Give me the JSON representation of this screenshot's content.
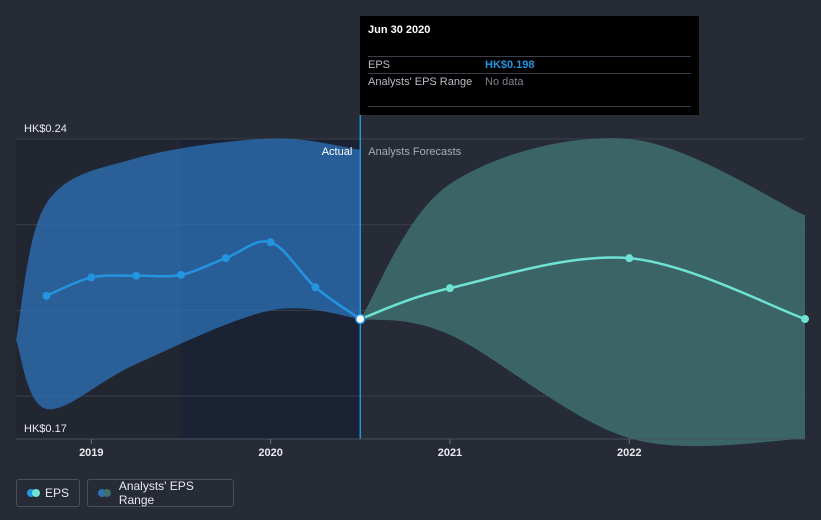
{
  "chart_data": {
    "type": "line",
    "x_axis": {
      "ticks": [
        {
          "label": "2019",
          "year": 2019.0
        },
        {
          "label": "2020",
          "year": 2020.0
        },
        {
          "label": "2021",
          "year": 2021.0
        },
        {
          "label": "2022",
          "year": 2022.0
        }
      ],
      "range": [
        2018.58,
        2022.98
      ]
    },
    "y_axis": {
      "range": [
        0.17,
        0.24
      ],
      "labels": [
        {
          "label": "HK$0.24",
          "value": 0.24
        },
        {
          "label": "HK$0.17",
          "value": 0.17
        }
      ],
      "gridlines": [
        0.24,
        0.22,
        0.2,
        0.18
      ]
    },
    "divider_year": 2020.5,
    "region_labels": {
      "actual": "Actual",
      "forecast": "Analysts Forecasts"
    },
    "series": [
      {
        "name": "EPS",
        "color": "#2394df",
        "points": [
          {
            "year": 2018.75,
            "value": 0.2034
          },
          {
            "year": 2019.0,
            "value": 0.2077
          },
          {
            "year": 2019.25,
            "value": 0.2081
          },
          {
            "year": 2019.5,
            "value": 0.2083
          },
          {
            "year": 2019.75,
            "value": 0.2122
          },
          {
            "year": 2020.0,
            "value": 0.2159
          },
          {
            "year": 2020.25,
            "value": 0.2054
          },
          {
            "year": 2020.5,
            "value": 0.198
          }
        ]
      },
      {
        "name": "EPS forecast",
        "color": "#6ee2d4",
        "points": [
          {
            "year": 2020.5,
            "value": 0.198
          },
          {
            "year": 2021.0,
            "value": 0.2052
          },
          {
            "year": 2022.0,
            "value": 0.2122
          },
          {
            "year": 2022.98,
            "value": 0.198
          }
        ]
      }
    ],
    "ranges": [
      {
        "name": "Analysts' EPS Range (past)",
        "color": "#2d6fb5",
        "upper": [
          {
            "year": 2018.58,
            "value": 0.193
          },
          {
            "year": 2018.75,
            "value": 0.225
          },
          {
            "year": 2019.25,
            "value": 0.2355
          },
          {
            "year": 2020.0,
            "value": 0.2401
          },
          {
            "year": 2020.5,
            "value": 0.2375
          }
        ],
        "lower": [
          {
            "year": 2018.58,
            "value": 0.193
          },
          {
            "year": 2018.75,
            "value": 0.177
          },
          {
            "year": 2019.25,
            "value": 0.1875
          },
          {
            "year": 2020.0,
            "value": 0.2
          },
          {
            "year": 2020.5,
            "value": 0.198
          }
        ]
      },
      {
        "name": "Analysts' EPS Range (forecast)",
        "color": "#3f6e6e",
        "upper": [
          {
            "year": 2020.5,
            "value": 0.198
          },
          {
            "year": 2021.0,
            "value": 0.2295
          },
          {
            "year": 2022.0,
            "value": 0.24
          },
          {
            "year": 2022.98,
            "value": 0.2222
          }
        ],
        "lower": [
          {
            "year": 2020.5,
            "value": 0.198
          },
          {
            "year": 2021.0,
            "value": 0.1943
          },
          {
            "year": 2022.0,
            "value": 0.1702
          },
          {
            "year": 2022.98,
            "value": 0.17
          }
        ]
      }
    ],
    "highlighted": {
      "year": 2020.5,
      "value": 0.198
    }
  },
  "tooltip": {
    "date": "Jun 30 2020",
    "rows": [
      {
        "label": "EPS",
        "value": "HK$0.198",
        "color": "#2394df"
      },
      {
        "label": "Analysts' EPS Range",
        "value": "No data",
        "color": "#7e838d"
      }
    ]
  },
  "legend": [
    {
      "label": "EPS",
      "colors": [
        "#2394df",
        "#6ee2d4"
      ]
    },
    {
      "label": "Analysts' EPS Range",
      "colors": [
        "#2d6fb5",
        "#3f6e6e"
      ]
    }
  ]
}
